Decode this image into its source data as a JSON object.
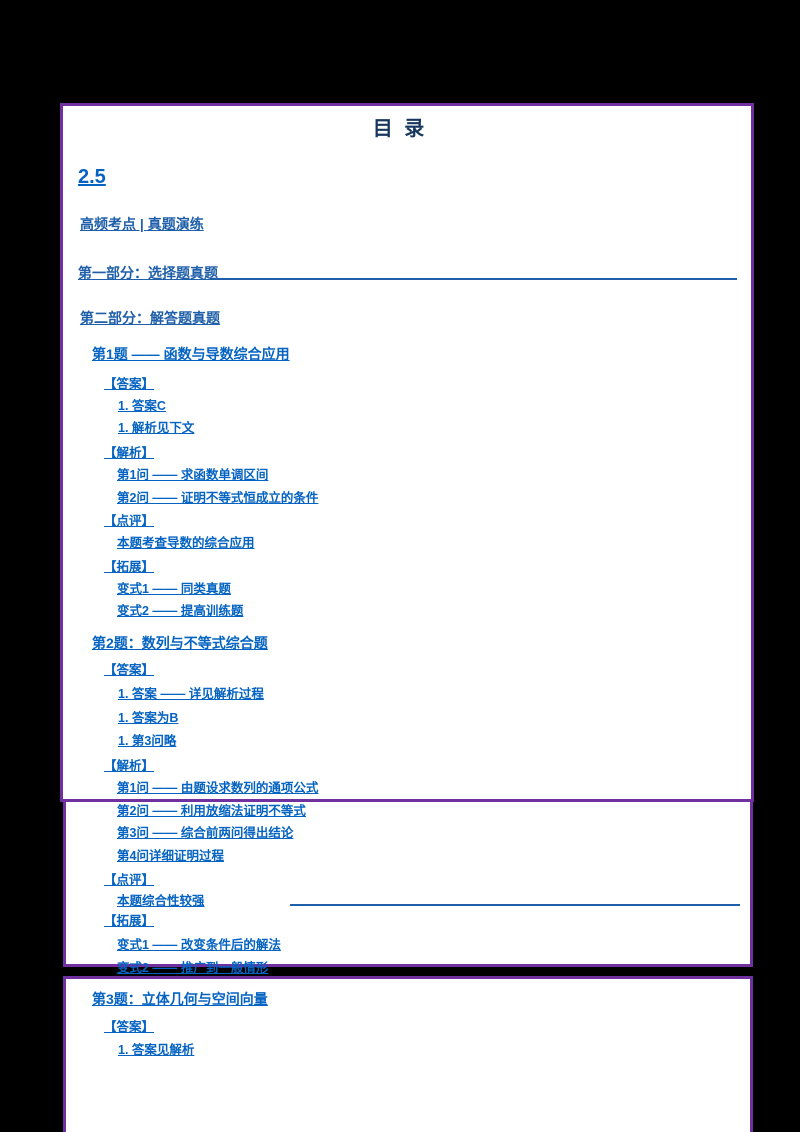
{
  "document": {
    "title": "目 录",
    "chapter_label": "2.5"
  },
  "colors": {
    "background": "#000000",
    "page_background": "#ffffff",
    "page_border": "#7030A0",
    "title_text": "#17365D",
    "heading_text": "#1F5FA9",
    "link_text": "#0563C1"
  },
  "toc_entries": [
    {
      "type": "heading",
      "text": "高频考点 | 真题演练"
    },
    {
      "type": "heading",
      "text": "第一部分：选择题真题",
      "rule": true
    },
    {
      "type": "heading",
      "text": "第二部分：解答题真题"
    },
    {
      "type": "section",
      "text": "第1题 —— 函数与导数综合应用"
    },
    {
      "type": "label",
      "text": "【答案】"
    },
    {
      "type": "item",
      "text": "1. 答案C"
    },
    {
      "type": "item",
      "text": "1. 解析见下文"
    },
    {
      "type": "label",
      "text": "【解析】"
    },
    {
      "type": "item",
      "text": "第1问 —— 求函数单调区间"
    },
    {
      "type": "item",
      "text": "第2问 —— 证明不等式恒成立的条件"
    },
    {
      "type": "label",
      "text": "【点评】"
    },
    {
      "type": "item",
      "text": "本题考查导数的综合应用"
    },
    {
      "type": "label",
      "text": "【拓展】"
    },
    {
      "type": "item",
      "text": "变式1 —— 同类真题"
    },
    {
      "type": "item",
      "text": "变式2 —— 提高训练题"
    },
    {
      "type": "section",
      "text": "第2题：数列与不等式综合题"
    },
    {
      "type": "label",
      "text": "【答案】"
    },
    {
      "type": "item",
      "text": "1. 答案 —— 详见解析过程"
    },
    {
      "type": "item",
      "text": "1. 答案为B"
    },
    {
      "type": "item",
      "text": "1. 第3问略"
    },
    {
      "type": "label",
      "text": "【解析】"
    },
    {
      "type": "item",
      "text": "第1问 —— 由题设求数列的通项公式"
    },
    {
      "type": "item",
      "text": "第2问 —— 利用放缩法证明不等式"
    },
    {
      "type": "item",
      "text": "第3问 —— 综合前两问得出结论"
    },
    {
      "type": "item",
      "text": "第4问详细证明过程"
    },
    {
      "type": "label",
      "text": "【点评】"
    },
    {
      "type": "item",
      "text": "本题综合性较强",
      "rule": true
    },
    {
      "type": "label",
      "text": "【拓展】"
    },
    {
      "type": "item",
      "text": "变式1 —— 改变条件后的解法"
    },
    {
      "type": "item",
      "text": "变式2 —— 推广到一般情形"
    },
    {
      "type": "section",
      "text": "第3题：立体几何与空间向量"
    },
    {
      "type": "label",
      "text": "【答案】"
    },
    {
      "type": "item",
      "text": "1. 答案见解析"
    }
  ]
}
